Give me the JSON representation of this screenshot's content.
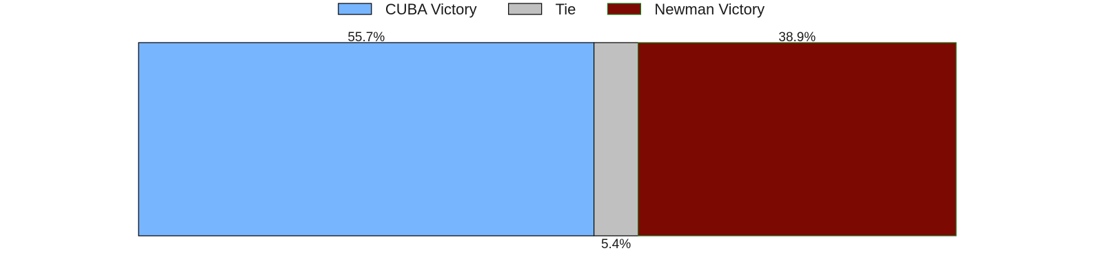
{
  "chart_data": {
    "type": "bar",
    "orientation": "horizontal",
    "stacked": true,
    "title": "",
    "xlabel": "",
    "ylabel": "",
    "xlim": [
      0,
      100
    ],
    "grid": false,
    "legend_position": "top-center",
    "series": [
      {
        "name": "CUBA Victory",
        "value": 55.7,
        "label": "55.7%",
        "color": "#77b5fe",
        "edge_color": "#000000",
        "label_position": "above"
      },
      {
        "name": "Tie",
        "value": 5.4,
        "label": "5.4%",
        "color": "#c0c0c0",
        "edge_color": "#000000",
        "label_position": "below"
      },
      {
        "name": "Newman Victory",
        "value": 38.9,
        "label": "38.9%",
        "color": "#7c0a02",
        "edge_color": "#1f7a1f",
        "label_position": "above"
      }
    ]
  }
}
